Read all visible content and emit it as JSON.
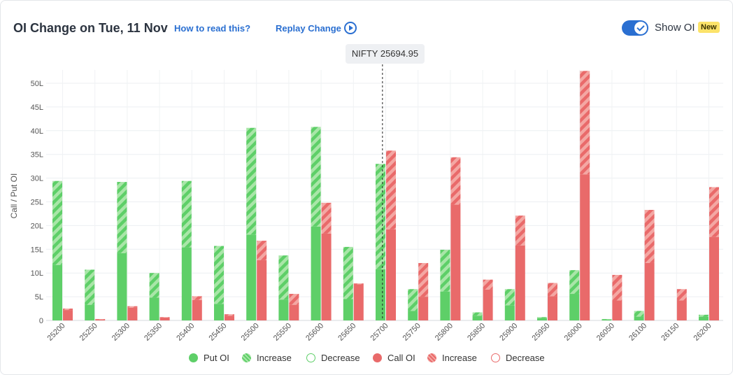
{
  "header": {
    "title": "OI Change on Tue, 11 Nov",
    "how_to_read": "How to read this?",
    "replay": "Replay Change",
    "toggle_label": "Show OI",
    "badge": "New",
    "spot_label": "NIFTY 25694.95"
  },
  "colors": {
    "put": "#5ecf68",
    "put_light": "#a9e6a8",
    "call": "#e96a6a",
    "call_light": "#f4a7a3"
  },
  "legend": [
    {
      "label": "Put OI",
      "kind": "put-solid"
    },
    {
      "label": "Increase",
      "kind": "put-hatch"
    },
    {
      "label": "Decrease",
      "kind": "put-outline"
    },
    {
      "label": "Call OI",
      "kind": "call-solid"
    },
    {
      "label": "Increase",
      "kind": "call-hatch"
    },
    {
      "label": "Decrease",
      "kind": "call-outline"
    }
  ],
  "chart_data": {
    "type": "bar",
    "ylabel": "Call / Put OI",
    "ylim": [
      0,
      50
    ],
    "yticks": [
      "0",
      "5L",
      "10L",
      "15L",
      "20L",
      "25L",
      "30L",
      "35L",
      "40L",
      "45L",
      "50L"
    ],
    "spot": 25694.95,
    "categories": [
      "25200",
      "25250",
      "25300",
      "25350",
      "25400",
      "25450",
      "25500",
      "25550",
      "25600",
      "25650",
      "25700",
      "25750",
      "25800",
      "25850",
      "25900",
      "25950",
      "26000",
      "26050",
      "26100",
      "26150",
      "26200"
    ],
    "series": [
      {
        "name": "Put OI",
        "values": [
          11.7,
          3.3,
          14.2,
          4.8,
          15.4,
          3.5,
          18.1,
          4.4,
          19.8,
          4.5,
          10.8,
          2.0,
          6.1,
          1.0,
          3.2,
          0.5,
          5.6,
          0.2,
          0.8,
          0,
          0.8
        ]
      },
      {
        "name": "Put OI Change",
        "values": [
          17.7,
          7.4,
          15.0,
          5.2,
          14.0,
          12.2,
          22.5,
          9.3,
          21.0,
          11.0,
          22.2,
          4.6,
          8.8,
          0.7,
          3.4,
          0.2,
          5.0,
          0.1,
          1.2,
          0,
          0.4
        ]
      },
      {
        "name": "Call OI",
        "values": [
          2.2,
          0.2,
          2.7,
          0.6,
          4.3,
          1.0,
          12.7,
          3.3,
          18.3,
          7.6,
          19.2,
          5.0,
          24.4,
          6.5,
          15.8,
          5.1,
          30.8,
          4.2,
          12.1,
          4.2,
          17.6
        ]
      },
      {
        "name": "Call OI Change",
        "values": [
          0.3,
          0.1,
          0.3,
          0.1,
          0.8,
          0.3,
          4.1,
          2.3,
          6.5,
          0.2,
          16.6,
          7.1,
          10.0,
          2.1,
          6.3,
          2.8,
          21.8,
          5.4,
          11.2,
          2.4,
          10.5
        ]
      }
    ]
  }
}
